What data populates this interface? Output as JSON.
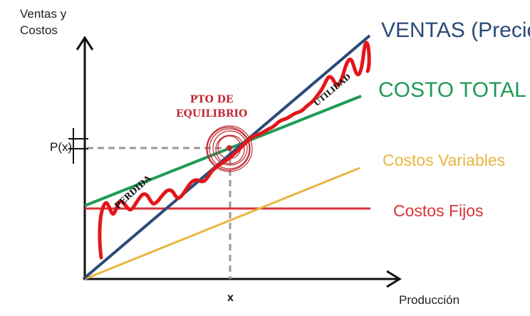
{
  "axes": {
    "y_label_line1": "Ventas y",
    "y_label_line2": "Costos",
    "x_label": "Producción"
  },
  "lines": {
    "ventas": "VENTAS (Precio)",
    "costo_total": "COSTO TOTAL",
    "costos_variables": "Costos Variables",
    "costos_fijos": "Costos Fijos"
  },
  "annotations": {
    "equilibrium_line1": "PTO DE",
    "equilibrium_line2": "EQUILIBRIO",
    "price_marker": "P(x)",
    "quantity_marker": "x",
    "loss_region": "PERDIDA",
    "profit_region": "UTILIDAD"
  },
  "colors": {
    "ventas": "#2a4a78",
    "costo_total": "#1f9a55",
    "costos_variables": "#e8b640",
    "costos_fijos": "#d8323a",
    "handwriting": "#e3161b"
  }
}
